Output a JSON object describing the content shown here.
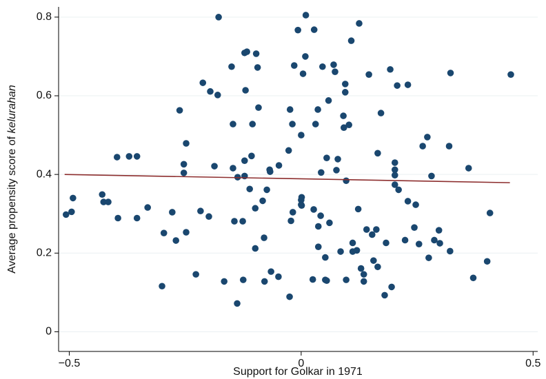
{
  "chart_data": {
    "type": "scatter",
    "x_label": "Support for Golkar in 1971",
    "y_label": "Average propensity score of",
    "y_label_italic": "kelurahan",
    "xlim": [
      -0.523,
      0.51
    ],
    "ylim": [
      -0.05,
      0.826
    ],
    "xticks": [
      {
        "value": -0.5,
        "label": "−0.5"
      },
      0,
      0.5
    ],
    "yticks": [
      0,
      0.2,
      0.4,
      0.6,
      0.8
    ],
    "grid": true,
    "series": [
      {
        "color": "#1a476f",
        "x": [
          -0.507,
          -0.495,
          -0.492,
          -0.429,
          -0.426,
          -0.416,
          -0.397,
          -0.395,
          -0.371,
          -0.354,
          -0.354,
          -0.331,
          -0.3,
          -0.296,
          -0.278,
          -0.27,
          -0.262,
          -0.253,
          -0.253,
          -0.248,
          -0.248,
          -0.227,
          -0.217,
          -0.212,
          -0.199,
          -0.196,
          -0.187,
          -0.18,
          -0.178,
          -0.166,
          -0.15,
          -0.147,
          -0.147,
          -0.144,
          -0.138,
          -0.137,
          -0.126,
          -0.125,
          -0.122,
          -0.12,
          -0.122,
          -0.122,
          -0.117,
          -0.111,
          -0.107,
          -0.105,
          -0.099,
          -0.099,
          -0.097,
          -0.094,
          -0.092,
          -0.083,
          -0.08,
          -0.079,
          -0.074,
          -0.068,
          -0.067,
          -0.065,
          -0.049,
          -0.048,
          -0.027,
          -0.025,
          -0.024,
          -0.022,
          -0.019,
          -0.018,
          -0.015,
          -0.007,
          0.0,
          0.0,
          0.0,
          0.001,
          0.001,
          0.004,
          0.009,
          0.01,
          0.025,
          0.027,
          0.028,
          0.031,
          0.036,
          0.037,
          0.037,
          0.042,
          0.043,
          0.046,
          0.052,
          0.052,
          0.055,
          0.055,
          0.059,
          0.061,
          0.07,
          0.073,
          0.076,
          0.079,
          0.085,
          0.091,
          0.092,
          0.095,
          0.095,
          0.097,
          0.097,
          0.103,
          0.108,
          0.111,
          0.111,
          0.12,
          0.123,
          0.125,
          0.129,
          0.135,
          0.135,
          0.141,
          0.146,
          0.153,
          0.156,
          0.162,
          0.165,
          0.165,
          0.172,
          0.183,
          0.18,
          0.192,
          0.195,
          0.202,
          0.202,
          0.202,
          0.202,
          0.207,
          0.21,
          0.224,
          0.23,
          0.23,
          0.244,
          0.247,
          0.254,
          0.262,
          0.272,
          0.275,
          0.281,
          0.287,
          0.297,
          0.299,
          0.319,
          0.321,
          0.322,
          0.361,
          0.371,
          0.401,
          0.407,
          0.452
        ],
        "y": [
          0.298,
          0.305,
          0.34,
          0.349,
          0.33,
          0.33,
          0.444,
          0.289,
          0.446,
          0.446,
          0.289,
          0.316,
          0.116,
          0.251,
          0.304,
          0.232,
          0.563,
          0.426,
          0.404,
          0.479,
          0.253,
          0.146,
          0.307,
          0.633,
          0.293,
          0.611,
          0.421,
          0.602,
          0.8,
          0.128,
          0.674,
          0.528,
          0.416,
          0.281,
          0.072,
          0.393,
          0.281,
          0.132,
          0.709,
          0.614,
          0.435,
          0.396,
          0.712,
          0.363,
          0.447,
          0.528,
          0.314,
          0.212,
          0.707,
          0.672,
          0.57,
          0.333,
          0.239,
          0.128,
          0.361,
          0.412,
          0.407,
          0.153,
          0.14,
          0.423,
          0.461,
          0.089,
          0.565,
          0.282,
          0.528,
          0.304,
          0.677,
          0.767,
          0.5,
          0.335,
          0.323,
          0.342,
          0.321,
          0.656,
          0.7,
          0.805,
          0.133,
          0.311,
          0.768,
          0.528,
          0.565,
          0.268,
          0.216,
          0.295,
          0.405,
          0.674,
          0.189,
          0.132,
          0.442,
          0.13,
          0.588,
          0.277,
          0.679,
          0.661,
          0.411,
          0.439,
          0.204,
          0.549,
          0.519,
          0.609,
          0.63,
          0.384,
          0.132,
          0.526,
          0.74,
          0.226,
          0.204,
          0.207,
          0.312,
          0.784,
          0.161,
          0.146,
          0.128,
          0.26,
          0.654,
          0.247,
          0.181,
          0.26,
          0.454,
          0.165,
          0.556,
          0.226,
          0.093,
          0.667,
          0.114,
          0.43,
          0.412,
          0.398,
          0.374,
          0.626,
          0.361,
          0.233,
          0.628,
          0.332,
          0.265,
          0.323,
          0.223,
          0.472,
          0.495,
          0.188,
          0.396,
          0.233,
          0.258,
          0.225,
          0.472,
          0.205,
          0.658,
          0.416,
          0.137,
          0.179,
          0.302,
          0.654
        ]
      }
    ],
    "fit_line": {
      "color": "#8c2d2d",
      "x": [
        -0.51,
        0.45
      ],
      "y": [
        0.4,
        0.379
      ]
    }
  }
}
